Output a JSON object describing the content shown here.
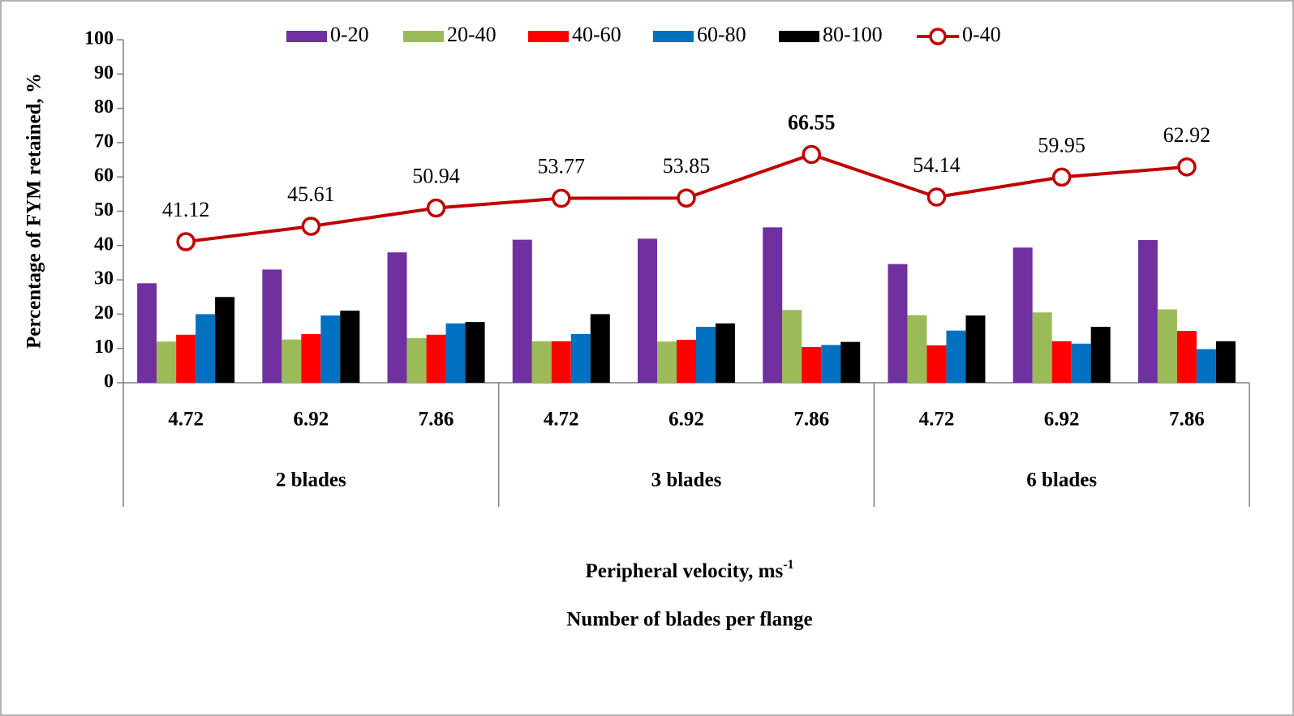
{
  "chart_data": {
    "type": "bar",
    "y_label": "Percentage of FYM retained, %",
    "x_label": {
      "text": "Peripheral velocity, ms",
      "superscript": "-1"
    },
    "x_label2": "Number of blades per flange",
    "categories": [
      "4.72",
      "6.92",
      "7.86",
      "4.72",
      "6.92",
      "7.86",
      "4.72",
      "6.92",
      "7.86"
    ],
    "groups": [
      "2 blades",
      "3 blades",
      "6 blades"
    ],
    "series": [
      {
        "name": "0-20",
        "type": "bar",
        "color": "#7030a0",
        "values": [
          29,
          33,
          38,
          41.7,
          42,
          45.3,
          34.6,
          39.4,
          41.6
        ]
      },
      {
        "name": "20-40",
        "type": "bar",
        "color": "#9bbb59",
        "values": [
          12,
          12.6,
          13,
          12.1,
          12,
          21.2,
          19.7,
          20.5,
          21.4
        ]
      },
      {
        "name": "40-60",
        "type": "bar",
        "color": "#ff0000",
        "values": [
          14,
          14.2,
          14,
          12.1,
          12.5,
          10.4,
          10.9,
          12.1,
          15.1
        ]
      },
      {
        "name": "60-80",
        "type": "bar",
        "color": "#0070c0",
        "values": [
          20,
          19.6,
          17.3,
          14.2,
          16.3,
          11,
          15.2,
          11.4,
          9.8
        ]
      },
      {
        "name": "80-100",
        "type": "bar",
        "color": "#000000",
        "values": [
          25,
          21,
          17.7,
          20,
          17.3,
          11.9,
          19.6,
          16.3,
          12.1
        ]
      },
      {
        "name": "0-40",
        "type": "line",
        "color": "#c00000",
        "values": [
          41.12,
          45.61,
          50.94,
          53.77,
          53.85,
          66.55,
          54.14,
          59.95,
          62.92
        ]
      }
    ],
    "ylim": [
      0,
      100
    ],
    "yticks": [
      0,
      10,
      20,
      30,
      40,
      50,
      60,
      70,
      80,
      90,
      100
    ],
    "grid": false,
    "legend": "top"
  }
}
